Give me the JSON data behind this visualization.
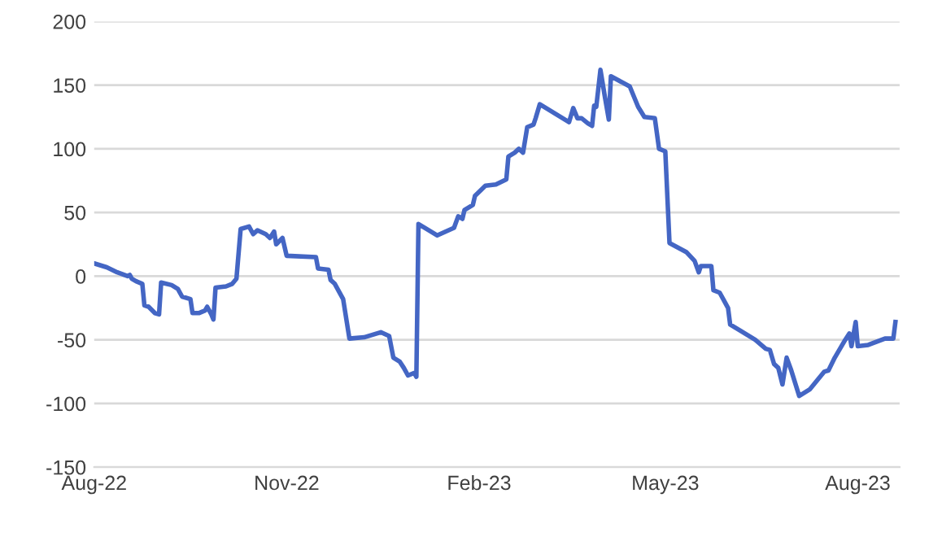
{
  "chart_data": {
    "type": "line",
    "x": [
      "2022-08-01",
      "2022-08-07",
      "2022-08-12",
      "2022-08-17",
      "2022-08-18",
      "2022-08-19",
      "2022-08-21",
      "2022-08-24",
      "2022-08-25",
      "2022-08-27",
      "2022-08-30",
      "2022-09-01",
      "2022-09-02",
      "2022-09-07",
      "2022-09-10",
      "2022-09-12",
      "2022-09-16",
      "2022-09-17",
      "2022-09-20",
      "2022-09-23",
      "2022-09-24",
      "2022-09-26",
      "2022-09-27",
      "2022-09-28",
      "2022-10-03",
      "2022-10-06",
      "2022-10-08",
      "2022-10-10",
      "2022-10-14",
      "2022-10-16",
      "2022-10-18",
      "2022-10-22",
      "2022-10-24",
      "2022-10-26",
      "2022-10-27",
      "2022-10-30",
      "2022-11-01",
      "2022-11-15",
      "2022-11-16",
      "2022-11-21",
      "2022-11-22",
      "2022-11-24",
      "2022-11-28",
      "2022-12-01",
      "2022-12-08",
      "2022-12-16",
      "2022-12-20",
      "2022-12-22",
      "2022-12-25",
      "2022-12-27",
      "2022-12-29",
      "2023-01-01",
      "2023-01-02",
      "2023-01-03",
      "2023-01-08",
      "2023-01-12",
      "2023-01-20",
      "2023-01-22",
      "2023-01-24",
      "2023-01-25",
      "2023-01-29",
      "2023-01-30",
      "2023-02-04",
      "2023-02-09",
      "2023-02-14",
      "2023-02-15",
      "2023-02-18",
      "2023-02-20",
      "2023-02-22",
      "2023-02-24",
      "2023-02-27",
      "2023-02-28",
      "2023-03-02",
      "2023-03-16",
      "2023-03-18",
      "2023-03-20",
      "2023-03-22",
      "2023-03-25",
      "2023-03-27",
      "2023-03-28",
      "2023-03-29",
      "2023-03-31",
      "2023-04-02",
      "2023-04-04",
      "2023-04-05",
      "2023-04-14",
      "2023-04-18",
      "2023-04-21",
      "2023-04-26",
      "2023-04-28",
      "2023-05-01",
      "2023-05-03",
      "2023-05-11",
      "2023-05-15",
      "2023-05-17",
      "2023-05-18",
      "2023-05-23",
      "2023-05-24",
      "2023-05-27",
      "2023-05-29",
      "2023-05-31",
      "2023-06-01",
      "2023-06-06",
      "2023-06-13",
      "2023-06-18",
      "2023-06-20",
      "2023-06-22",
      "2023-06-24",
      "2023-06-26",
      "2023-06-28",
      "2023-06-30",
      "2023-07-04",
      "2023-07-09",
      "2023-07-16",
      "2023-07-18",
      "2023-07-21",
      "2023-07-26",
      "2023-07-28",
      "2023-07-29",
      "2023-07-31",
      "2023-08-01",
      "2023-08-06",
      "2023-08-14",
      "2023-08-18",
      "2023-08-19"
    ],
    "series": [
      {
        "color": "#4466c4",
        "values": [
          10,
          7,
          3,
          0,
          1,
          -2,
          -4,
          -6,
          -23,
          -24,
          -29,
          -30,
          -5,
          -7,
          -10,
          -16,
          -18,
          -29,
          -29,
          -27,
          -24,
          -30,
          -34,
          -9,
          -8,
          -6,
          -2,
          37,
          39,
          33,
          36,
          33,
          30,
          35,
          25,
          30,
          16,
          15,
          6,
          5,
          -3,
          -6,
          -18,
          -49,
          -48,
          -44,
          -47,
          -64,
          -67,
          -72,
          -78,
          -76,
          -79,
          41,
          36,
          32,
          38,
          47,
          45,
          52,
          56,
          63,
          71,
          72,
          76,
          94,
          97,
          100,
          97,
          117,
          119,
          124,
          135,
          121,
          132,
          124,
          124,
          120,
          118,
          134,
          133,
          162,
          142,
          123,
          157,
          149,
          133,
          125,
          124,
          100,
          98,
          26,
          19,
          12,
          3,
          8,
          8,
          -11,
          -13,
          -19,
          -25,
          -38,
          -43,
          -50,
          -57,
          -58,
          -69,
          -72,
          -85,
          -64,
          -73,
          -94,
          -89,
          -75,
          -74,
          -64,
          -50,
          -45,
          -55,
          -36,
          -55,
          -54,
          -49,
          -49,
          -36
        ]
      }
    ],
    "xlim": [
      "2022-08-01",
      "2023-08-21"
    ],
    "xticks": [
      {
        "value": "2022-08-01",
        "label": "Aug-22"
      },
      {
        "value": "2022-11-01",
        "label": "Nov-22"
      },
      {
        "value": "2023-02-01",
        "label": "Feb-23"
      },
      {
        "value": "2023-05-01",
        "label": "May-23"
      },
      {
        "value": "2023-08-01",
        "label": "Aug-23"
      }
    ],
    "ylim": [
      -150,
      200
    ],
    "yticks": [
      -150,
      -100,
      -50,
      0,
      50,
      100,
      150,
      200
    ],
    "grid": "y",
    "marker": "none",
    "line_style": "solid"
  }
}
